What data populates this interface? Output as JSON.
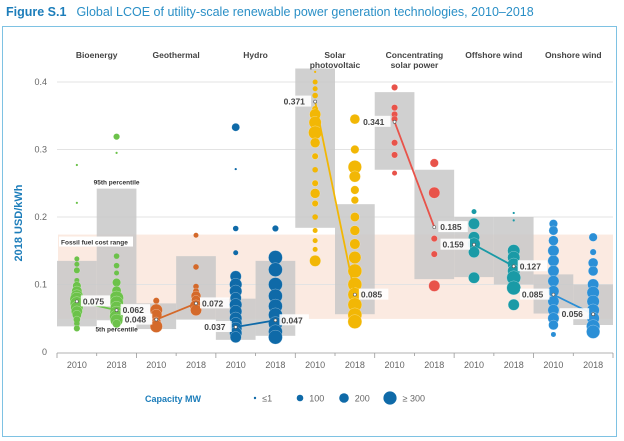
{
  "figure": {
    "label": "Figure S.1",
    "title": "Global LCOE of utility-scale renewable power generation technologies, 2010–2018"
  },
  "chart_data": {
    "type": "scatter",
    "title": "Global LCOE of utility-scale renewable power generation technologies, 2010–2018",
    "ylabel": "2018 USD/kWh",
    "xlabel": "",
    "ylim": [
      0,
      0.4
    ],
    "yticks": [
      0,
      0.1,
      0.2,
      0.3,
      0.4
    ],
    "ytick_labels": [
      "0",
      "0.1",
      "0.2",
      "0.3",
      "0.4"
    ],
    "grid": true,
    "fossil_fuel_range": {
      "label": "Fossil fuel cost range",
      "low": 0.049,
      "high": 0.174,
      "color": "#fbeae1"
    },
    "annotations": {
      "p95": "95th percentile",
      "p5": "5th percentile"
    },
    "legend": {
      "title": "Capacity MW",
      "placement": "bottom-center",
      "entries": [
        {
          "label": "≤1",
          "capacity": 1
        },
        {
          "label": "100",
          "capacity": 100
        },
        {
          "label": "200",
          "capacity": 200
        },
        {
          "label": "≥ 300",
          "capacity": 300
        }
      ]
    },
    "technologies": [
      {
        "name": "Bioenergy",
        "color": "#6cc24a",
        "years": [
          {
            "year": "2010",
            "weighted_avg": 0.075,
            "p5": 0.038,
            "p95": 0.135,
            "points": [
              [
                0.277,
                1
              ],
              [
                0.221,
                1
              ],
              [
                0.138,
                5
              ],
              [
                0.13,
                5
              ],
              [
                0.121,
                20
              ],
              [
                0.106,
                5
              ],
              [
                0.098,
                60
              ],
              [
                0.09,
                120
              ],
              [
                0.083,
                200
              ],
              [
                0.078,
                300
              ],
              [
                0.072,
                250
              ],
              [
                0.066,
                200
              ],
              [
                0.06,
                150
              ],
              [
                0.055,
                80
              ],
              [
                0.048,
                30
              ],
              [
                0.042,
                10
              ],
              [
                0.035,
                20
              ]
            ]
          },
          {
            "year": "2018",
            "weighted_avg": 0.062,
            "p5": 0.047,
            "p95": 0.242,
            "points": [
              [
                0.319,
                20
              ],
              [
                0.295,
                1
              ],
              [
                0.142,
                10
              ],
              [
                0.128,
                10
              ],
              [
                0.117,
                5
              ],
              [
                0.103,
                60
              ],
              [
                0.091,
                80
              ],
              [
                0.08,
                300
              ],
              [
                0.073,
                250
              ],
              [
                0.066,
                200
              ],
              [
                0.058,
                250
              ],
              [
                0.052,
                300
              ],
              [
                0.047,
                200
              ],
              [
                0.042,
                60
              ]
            ]
          }
        ]
      },
      {
        "name": "Geothermal",
        "color": "#d4692a",
        "years": [
          {
            "year": "2010",
            "weighted_avg": 0.048,
            "p5": 0.034,
            "p95": 0.072,
            "points": [
              [
                0.076,
                20
              ],
              [
                0.062,
                200
              ],
              [
                0.055,
                150
              ],
              [
                0.045,
                80
              ],
              [
                0.038,
                200
              ]
            ]
          }
        ]
      },
      {
        "name": "Hydro",
        "color": "#0f6aa8",
        "years": [
          {
            "year": "2010",
            "weighted_avg": 0.037,
            "p5": 0.018,
            "p95": 0.079,
            "points": [
              [
                0.333,
                50
              ],
              [
                0.271,
                1
              ],
              [
                0.183,
                10
              ],
              [
                0.147,
                5
              ],
              [
                0.112,
                150
              ],
              [
                0.1,
                200
              ],
              [
                0.09,
                200
              ],
              [
                0.08,
                150
              ],
              [
                0.07,
                200
              ],
              [
                0.06,
                200
              ],
              [
                0.05,
                200
              ],
              [
                0.042,
                200
              ],
              [
                0.035,
                200
              ],
              [
                0.028,
                200
              ],
              [
                0.022,
                150
              ]
            ]
          },
          {
            "year": "2018",
            "weighted_avg": 0.047,
            "p5": 0.024,
            "p95": 0.135,
            "points": [
              [
                0.183,
                20
              ],
              [
                0.14,
                300
              ],
              [
                0.122,
                300
              ],
              [
                0.1,
                300
              ],
              [
                0.083,
                300
              ],
              [
                0.068,
                300
              ],
              [
                0.055,
                300
              ],
              [
                0.042,
                300
              ],
              [
                0.03,
                300
              ],
              [
                0.022,
                300
              ]
            ]
          }
        ]
      },
      {
        "name": "Solar photovoltaic",
        "color": "#f2b705",
        "years": [
          {
            "year": "2010",
            "weighted_avg": 0.371,
            "p5": 0.184,
            "p95": 0.42,
            "points": [
              [
                0.415,
                1
              ],
              [
                0.4,
                5
              ],
              [
                0.39,
                5
              ],
              [
                0.38,
                10
              ],
              [
                0.36,
                20
              ],
              [
                0.352,
                150
              ],
              [
                0.34,
                200
              ],
              [
                0.325,
                250
              ],
              [
                0.31,
                100
              ],
              [
                0.29,
                20
              ],
              [
                0.27,
                10
              ],
              [
                0.25,
                20
              ],
              [
                0.235,
                100
              ],
              [
                0.22,
                20
              ],
              [
                0.2,
                10
              ],
              [
                0.18,
                5
              ],
              [
                0.165,
                5
              ],
              [
                0.152,
                5
              ],
              [
                0.135,
                150
              ]
            ]
          },
          {
            "year": "2018",
            "weighted_avg": 0.085,
            "p5": 0.056,
            "p95": 0.219,
            "points": [
              [
                0.345,
                100
              ],
              [
                0.3,
                60
              ],
              [
                0.274,
                250
              ],
              [
                0.26,
                150
              ],
              [
                0.24,
                60
              ],
              [
                0.225,
                40
              ],
              [
                0.2,
                80
              ],
              [
                0.18,
                100
              ],
              [
                0.16,
                120
              ],
              [
                0.14,
                200
              ],
              [
                0.12,
                300
              ],
              [
                0.1,
                300
              ],
              [
                0.085,
                300
              ],
              [
                0.07,
                300
              ],
              [
                0.055,
                300
              ],
              [
                0.045,
                300
              ]
            ]
          }
        ]
      },
      {
        "name": "Concentrating solar power",
        "color": "#e8534a",
        "years": [
          {
            "year": "2010",
            "weighted_avg": 0.341,
            "p5": 0.27,
            "p95": 0.385,
            "points": [
              [
                0.392,
                20
              ],
              [
                0.362,
                20
              ],
              [
                0.352,
                20
              ],
              [
                0.345,
                20
              ],
              [
                0.31,
                20
              ],
              [
                0.292,
                20
              ],
              [
                0.265,
                5
              ]
            ]
          },
          {
            "year": "2018",
            "weighted_avg": 0.185,
            "p5": 0.108,
            "p95": 0.27,
            "points": [
              [
                0.28,
                60
              ],
              [
                0.236,
                150
              ],
              [
                0.168,
                20
              ],
              [
                0.145,
                20
              ],
              [
                0.098,
                150
              ]
            ]
          }
        ]
      },
      {
        "name": "Offshore wind",
        "color": "#1a9aa6",
        "years": [
          {
            "year": "2010",
            "weighted_avg": 0.159,
            "p5": 0.111,
            "p95": 0.2,
            "points": [
              [
                0.208,
                5
              ],
              [
                0.19,
                150
              ],
              [
                0.17,
                150
              ],
              [
                0.16,
                200
              ],
              [
                0.148,
                150
              ],
              [
                0.11,
                150
              ]
            ]
          },
          {
            "year": "2018",
            "weighted_avg": 0.127,
            "p5": 0.1,
            "p95": 0.2,
            "points": [
              [
                0.206,
                1
              ],
              [
                0.195,
                1
              ],
              [
                0.15,
                200
              ],
              [
                0.14,
                200
              ],
              [
                0.13,
                200
              ],
              [
                0.12,
                200
              ],
              [
                0.11,
                300
              ],
              [
                0.095,
                300
              ],
              [
                0.07,
                150
              ]
            ]
          }
        ]
      },
      {
        "name": "Onshore wind",
        "color": "#2b8fd6",
        "years": [
          {
            "year": "2010",
            "weighted_avg": 0.085,
            "p5": 0.057,
            "p95": 0.115,
            "points": [
              [
                0.19,
                60
              ],
              [
                0.18,
                80
              ],
              [
                0.165,
                100
              ],
              [
                0.15,
                150
              ],
              [
                0.135,
                150
              ],
              [
                0.12,
                150
              ],
              [
                0.105,
                150
              ],
              [
                0.09,
                150
              ],
              [
                0.075,
                150
              ],
              [
                0.062,
                150
              ],
              [
                0.05,
                150
              ],
              [
                0.04,
                100
              ],
              [
                0.026,
                5
              ]
            ]
          },
          {
            "year": "2018",
            "weighted_avg": 0.056,
            "p5": 0.04,
            "p95": 0.1,
            "points": [
              [
                0.17,
                60
              ],
              [
                0.148,
                20
              ],
              [
                0.132,
                100
              ],
              [
                0.12,
                100
              ],
              [
                0.1,
                150
              ],
              [
                0.088,
                200
              ],
              [
                0.075,
                200
              ],
              [
                0.062,
                200
              ],
              [
                0.05,
                200
              ],
              [
                0.038,
                250
              ],
              [
                0.03,
                250
              ]
            ]
          }
        ]
      }
    ],
    "categories": [
      "Bioenergy",
      "Geothermal",
      "Hydro",
      "Solar photovoltaic",
      "Concentrating solar power",
      "Offshore wind",
      "Onshore wind"
    ],
    "category_labels": [
      [
        "Bioenergy"
      ],
      [
        "Geothermal"
      ],
      [
        "Hydro"
      ],
      [
        "Solar",
        "photovoltaic"
      ],
      [
        "Concentrating",
        "solar power"
      ],
      [
        "Offshore wind"
      ],
      [
        "Onshore wind"
      ]
    ],
    "x_ticks": [
      "2010",
      "2018",
      "2010",
      "2018",
      "2010",
      "2018",
      "2010",
      "2018",
      "2010",
      "2018",
      "2010",
      "2018",
      "2010",
      "2018"
    ]
  }
}
